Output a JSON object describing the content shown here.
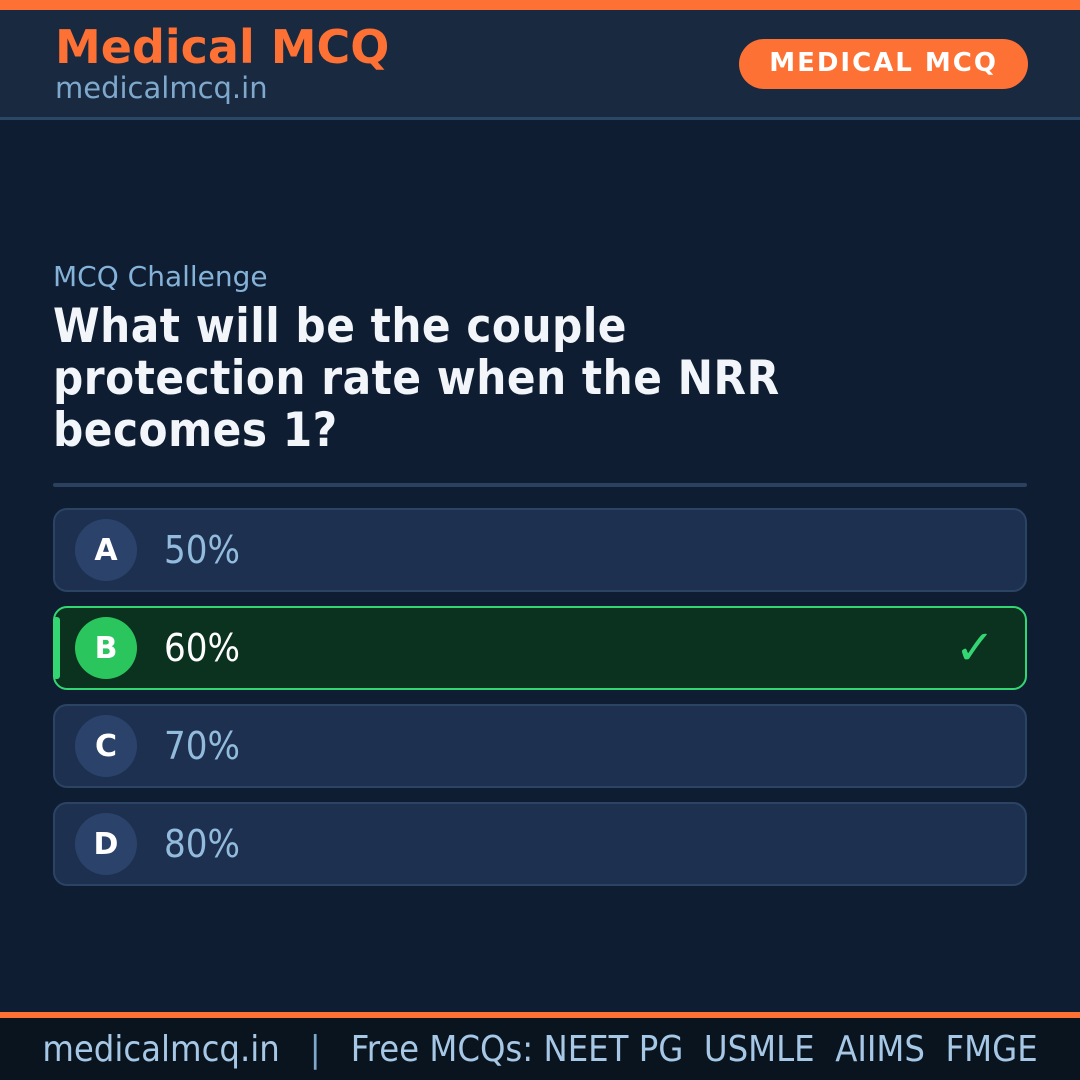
{
  "brand": {
    "title": "Medical MCQ",
    "subtitle": "medicalmcq.in",
    "badge": "MEDICAL MCQ"
  },
  "quiz": {
    "label": "MCQ Challenge",
    "question": "What will be the couple protection rate when the NRR becomes 1?",
    "question_lines": [
      "What will be the couple",
      "protection rate when the NRR",
      "becomes 1?"
    ],
    "options": [
      {
        "letter": "A",
        "text": "50%",
        "correct": false
      },
      {
        "letter": "B",
        "text": "60%",
        "correct": true
      },
      {
        "letter": "C",
        "text": "70%",
        "correct": false
      },
      {
        "letter": "D",
        "text": "80%",
        "correct": false
      }
    ],
    "check_icon": "✓"
  },
  "footer": {
    "site": "medicalmcq.in",
    "separator": "|",
    "tagline": "Free MCQs: NEET PG  USMLE  AIIMS  FMGE"
  },
  "colors": {
    "accent_orange": "#fe7134",
    "correct_green": "#34d674",
    "correct_circle_green": "#2bc55e",
    "correct_bg": "#0b311f",
    "header_bg": "#182940",
    "body_bg": "#0e1d31",
    "card_bg": "#1d3050",
    "light_blue_text": "#85b2d8",
    "footer_bg": "#0a141e"
  }
}
